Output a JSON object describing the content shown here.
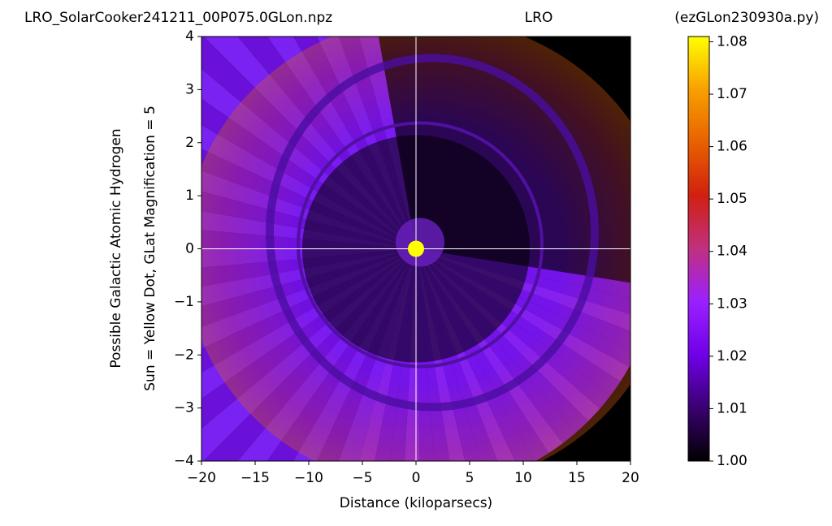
{
  "chart_data": {
    "type": "heatmap",
    "title_left": "LRO_SolarCooker241211_00P075.0GLon.npz",
    "title_center": "LRO",
    "title_right": "(ezGLon230930a.py)",
    "xlabel": "Distance (kiloparsecs)",
    "ylabel": [
      "Possible Galactic Atomic Hydrogen",
      "Sun = Yellow Dot, GLat Magnification = 5"
    ],
    "xlim": [
      -20,
      20
    ],
    "xticks": [
      {
        "value": -20,
        "label": "−20"
      },
      {
        "value": -15,
        "label": "−15"
      },
      {
        "value": -10,
        "label": "−10"
      },
      {
        "value": -5,
        "label": "−5"
      },
      0,
      5,
      10,
      15,
      20
    ],
    "ylim": [
      -4,
      4
    ],
    "yticks": [
      {
        "value": -4,
        "label": "−4"
      },
      {
        "value": -3,
        "label": "−3"
      },
      {
        "value": -2,
        "label": "−2"
      },
      {
        "value": -1,
        "label": "−1"
      },
      0,
      1,
      2,
      3,
      4
    ],
    "sun": {
      "x": 0,
      "y": 0,
      "color": "#ffff00"
    },
    "crosshair_color": "#ffffff",
    "colorbar": {
      "lim": [
        1.0,
        1.081
      ],
      "ticks": [
        {
          "value": 1.0,
          "label": "1.00"
        },
        1.01,
        1.02,
        1.03,
        1.04,
        1.05,
        1.06,
        1.07,
        1.08
      ],
      "colors": [
        "#000000",
        "#3a0070",
        "#7000e8",
        "#9a20ff",
        "#c03080",
        "#d02010",
        "#e86000",
        "#f8a000",
        "#ffff00"
      ]
    }
  }
}
